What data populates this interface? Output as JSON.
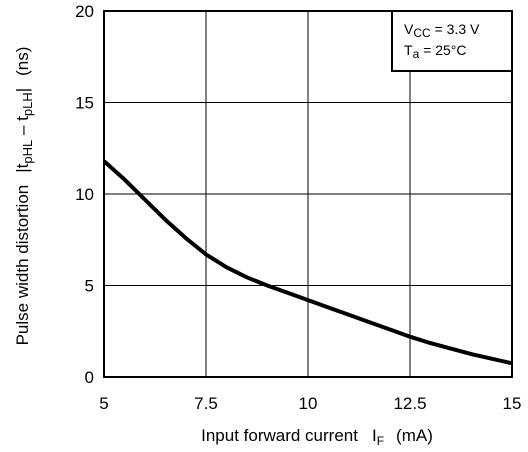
{
  "chart_data": {
    "type": "line",
    "xlabel": "Input forward current",
    "xlabel_symbol": "I",
    "xlabel_symbol_sub": "F",
    "xlabel_unit": "(mA)",
    "ylabel": "Pulse width distortion",
    "ylabel_symbol_parts": [
      "|t",
      "pHL",
      " – t",
      "pLH",
      "|"
    ],
    "ylabel_unit": "(ns)",
    "xlim": [
      5,
      15
    ],
    "ylim": [
      0,
      20
    ],
    "x_ticks": [
      5,
      7.5,
      10,
      12.5,
      15
    ],
    "x_tick_labels": [
      "5",
      "7.5",
      "10",
      "12.5",
      "15"
    ],
    "y_ticks": [
      0,
      5,
      10,
      15,
      20
    ],
    "y_tick_labels": [
      "0",
      "5",
      "10",
      "15",
      "20"
    ],
    "grid": true,
    "annotation": {
      "line1_main": "V",
      "line1_sub": "CC",
      "line1_value": " = 3.3 V",
      "line2_main": "T",
      "line2_sub": "a",
      "line2_value": " = 25°C",
      "position": "top-right"
    },
    "series": [
      {
        "x": [
          5,
          5.5,
          6,
          6.5,
          7,
          7.5,
          8,
          8.5,
          9,
          9.5,
          10,
          10.5,
          11,
          11.5,
          12,
          12.5,
          13,
          13.5,
          14,
          14.5,
          15
        ],
        "y": [
          11.8,
          10.8,
          9.7,
          8.6,
          7.6,
          6.7,
          6.0,
          5.45,
          5.0,
          4.6,
          4.2,
          3.8,
          3.4,
          3.0,
          2.6,
          2.2,
          1.85,
          1.55,
          1.25,
          1.0,
          0.75
        ]
      }
    ]
  }
}
